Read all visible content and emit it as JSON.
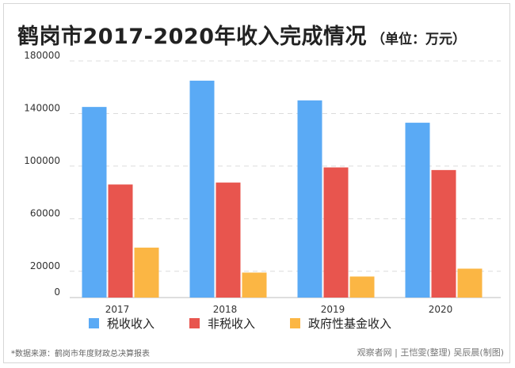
{
  "title": "鹤岗市2017-2020年收入完成情况",
  "subtitle": "（单位：万元）",
  "footer": {
    "source": "*数据来源：鹤岗市年度财政总决算报表",
    "credit": "观察者网 | 王恺雯(整理) 吴辰晨(制图)"
  },
  "chart_data": {
    "type": "bar",
    "categories": [
      "2017",
      "2018",
      "2019",
      "2020"
    ],
    "series": [
      {
        "name": "税收收入",
        "color": "#5aaaf5",
        "values": [
          145000,
          165000,
          150000,
          133000
        ]
      },
      {
        "name": "非税收入",
        "color": "#e8554e",
        "values": [
          86000,
          87500,
          99000,
          97000
        ]
      },
      {
        "name": "政府性基金收入",
        "color": "#fbb644",
        "values": [
          38000,
          19000,
          16000,
          22000
        ]
      }
    ],
    "yticks": [
      0,
      20000,
      60000,
      100000,
      140000,
      180000
    ],
    "ylim": [
      0,
      180000
    ],
    "grid": true,
    "legend_position": "bottom"
  }
}
